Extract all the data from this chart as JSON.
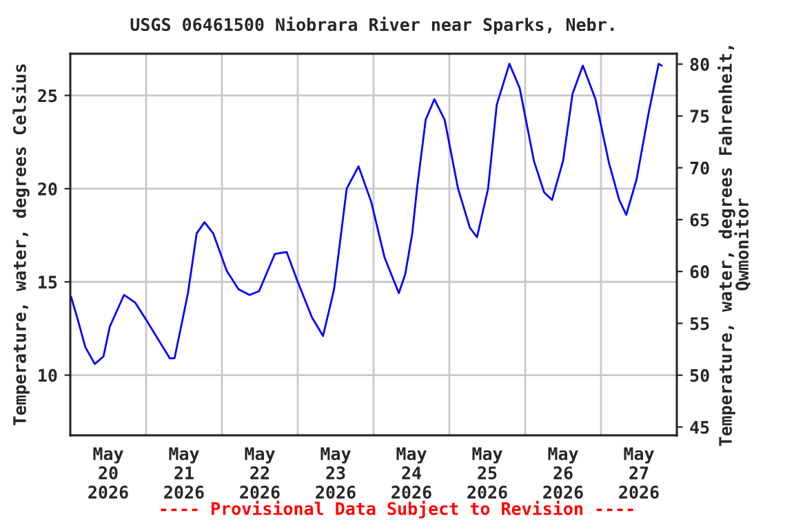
{
  "chart_data": {
    "type": "line",
    "title": "USGS 06461500 Niobrara River near Sparks, Nebr.",
    "ylabel": "Temperature, water, degrees Celsius",
    "y2label": "Temperature, water, degrees Fahrenheit,\nQwmonitor",
    "annotations": [
      "---- Provisional Data Subject to Revision ----"
    ],
    "x": [
      "2026-05-20T00:15",
      "2026-05-20T02:30",
      "2026-05-20T04:45",
      "2026-05-20T07:45",
      "2026-05-20T10:30",
      "2026-05-20T12:30",
      "2026-05-20T17:00",
      "2026-05-20T20:30",
      "2026-05-21T00:15",
      "2026-05-21T07:30",
      "2026-05-21T09:00",
      "2026-05-21T13:15",
      "2026-05-21T16:00",
      "2026-05-21T18:30",
      "2026-05-21T21:15",
      "2026-05-22T01:30",
      "2026-05-22T05:15",
      "2026-05-22T08:45",
      "2026-05-22T11:45",
      "2026-05-22T16:45",
      "2026-05-22T20:30",
      "2026-05-23T00:00",
      "2026-05-23T04:30",
      "2026-05-23T08:00",
      "2026-05-23T11:30",
      "2026-05-23T15:30",
      "2026-05-23T19:15",
      "2026-05-23T23:15",
      "2026-05-24T03:30",
      "2026-05-24T08:00",
      "2026-05-24T10:00",
      "2026-05-24T12:15",
      "2026-05-24T13:45",
      "2026-05-24T16:30",
      "2026-05-24T19:15",
      "2026-05-24T22:30",
      "2026-05-25T02:45",
      "2026-05-25T06:30",
      "2026-05-25T08:45",
      "2026-05-25T12:15",
      "2026-05-25T15:00",
      "2026-05-25T19:00",
      "2026-05-25T22:15",
      "2026-05-26T02:45",
      "2026-05-26T06:00",
      "2026-05-26T08:30",
      "2026-05-26T12:00",
      "2026-05-26T15:00",
      "2026-05-26T18:15",
      "2026-05-26T22:15",
      "2026-05-27T02:30",
      "2026-05-27T05:45",
      "2026-05-27T08:00",
      "2026-05-27T11:15",
      "2026-05-27T15:00",
      "2026-05-27T18:15",
      "2026-05-27T19:15"
    ],
    "series": [
      {
        "color": "#0000ff",
        "values": [
          14.2,
          12.9,
          11.5,
          10.6,
          11.0,
          12.6,
          14.3,
          13.9,
          12.9,
          10.9,
          10.9,
          14.4,
          17.6,
          18.2,
          17.6,
          15.6,
          14.6,
          14.3,
          14.5,
          16.5,
          16.6,
          15.0,
          13.1,
          12.1,
          14.6,
          20.0,
          21.2,
          19.3,
          16.3,
          14.4,
          15.4,
          17.6,
          20.0,
          23.7,
          24.8,
          23.7,
          20.0,
          17.9,
          17.4,
          20.0,
          24.5,
          26.7,
          25.4,
          21.5,
          19.8,
          19.4,
          21.5,
          25.1,
          26.6,
          24.8,
          21.4,
          19.4,
          18.6,
          20.5,
          24.0,
          26.7,
          26.6
        ]
      }
    ],
    "xlim": [
      "2026-05-20T00:00",
      "2026-05-28T00:00"
    ],
    "xticks": [
      {
        "value": "2026-05-20T12:00",
        "label": "May\n20\n2026"
      },
      {
        "value": "2026-05-21T00:00",
        "label": null
      },
      {
        "value": "2026-05-21T12:00",
        "label": "May\n21\n2026"
      },
      {
        "value": "2026-05-22T00:00",
        "label": null
      },
      {
        "value": "2026-05-22T12:00",
        "label": "May\n22\n2026"
      },
      {
        "value": "2026-05-23T00:00",
        "label": null
      },
      {
        "value": "2026-05-23T12:00",
        "label": "May\n23\n2026"
      },
      {
        "value": "2026-05-24T00:00",
        "label": null
      },
      {
        "value": "2026-05-24T12:00",
        "label": "May\n24\n2026"
      },
      {
        "value": "2026-05-25T00:00",
        "label": null
      },
      {
        "value": "2026-05-25T12:00",
        "label": "May\n25\n2026"
      },
      {
        "value": "2026-05-26T00:00",
        "label": null
      },
      {
        "value": "2026-05-26T12:00",
        "label": "May\n26\n2026"
      },
      {
        "value": "2026-05-27T00:00",
        "label": null
      },
      {
        "value": "2026-05-27T12:00",
        "label": "May\n27\n2026"
      }
    ],
    "ylim": [
      6.77,
      27.24
    ],
    "yticks": [
      10,
      15,
      20,
      25
    ],
    "y2lim": [
      44.2,
      81.0
    ],
    "y2ticks": [
      45,
      50,
      55,
      60,
      65,
      70,
      75,
      80
    ],
    "grid": true,
    "line_style": "solid"
  }
}
